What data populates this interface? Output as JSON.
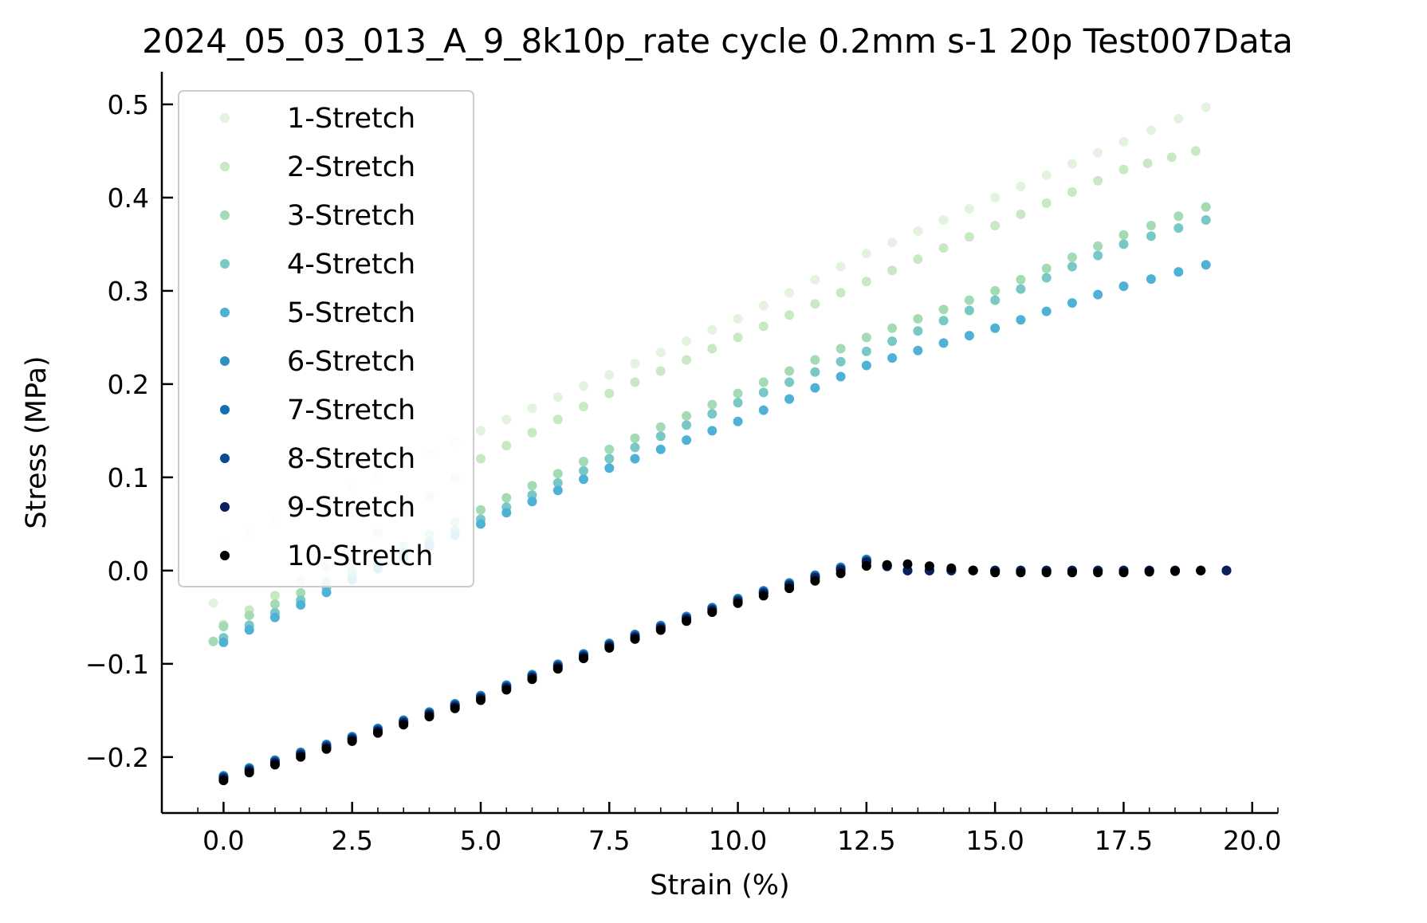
{
  "chart_data": {
    "type": "scatter",
    "title": "2024_05_03_013_A_9_8k10p_rate cycle 0.2mm s-1 20p Test007Data",
    "xlabel": "Strain (%)",
    "ylabel": "Stress (MPa)",
    "xlim": [
      -1.2,
      20.5
    ],
    "ylim": [
      -0.26,
      0.535
    ],
    "xticks": [
      0.0,
      2.5,
      5.0,
      7.5,
      10.0,
      12.5,
      15.0,
      17.5,
      20.0
    ],
    "xtick_labels": [
      "0.0",
      "2.5",
      "5.0",
      "7.5",
      "10.0",
      "12.5",
      "15.0",
      "17.5",
      "20.0"
    ],
    "yticks": [
      -0.2,
      -0.1,
      0.0,
      0.1,
      0.2,
      0.3,
      0.4,
      0.5
    ],
    "ytick_labels": [
      "−0.2",
      "−0.1",
      "0.0",
      "0.1",
      "0.2",
      "0.3",
      "0.4",
      "0.5"
    ],
    "grid": false,
    "legend_position": "top-left",
    "series": [
      {
        "name": "1-Stretch",
        "color": "#e3f3e0",
        "x": [
          -0.2,
          0.0,
          2.5,
          5.0,
          7.5,
          10.0,
          12.5,
          15.0,
          17.5,
          19.1
        ],
        "y": [
          -0.035,
          0.03,
          0.09,
          0.15,
          0.21,
          0.27,
          0.34,
          0.4,
          0.46,
          0.497
        ]
      },
      {
        "name": "2-Stretch",
        "color": "#c8e9c3",
        "x": [
          0.0,
          2.5,
          5.0,
          7.5,
          10.0,
          12.5,
          15.0,
          17.5,
          18.9
        ],
        "y": [
          -0.058,
          0.02,
          0.12,
          0.19,
          0.25,
          0.31,
          0.37,
          0.43,
          0.45
        ]
      },
      {
        "name": "3-Stretch",
        "color": "#a4dbb5",
        "x": [
          -0.2,
          0.0,
          2.5,
          5.0,
          7.5,
          10.0,
          12.5,
          15.0,
          17.5,
          19.1
        ],
        "y": [
          -0.076,
          -0.06,
          0.0,
          0.065,
          0.13,
          0.19,
          0.25,
          0.3,
          0.36,
          0.39
        ]
      },
      {
        "name": "4-Stretch",
        "color": "#78c9c5",
        "x": [
          0.0,
          2.5,
          5.0,
          7.5,
          10.0,
          12.5,
          15.0,
          17.5,
          19.1
        ],
        "y": [
          -0.072,
          -0.005,
          0.055,
          0.12,
          0.18,
          0.235,
          0.29,
          0.35,
          0.376
        ]
      },
      {
        "name": "5-Stretch",
        "color": "#4eb1d5",
        "x": [
          0.0,
          2.5,
          5.0,
          7.5,
          10.0,
          12.5,
          15.0,
          17.5,
          19.1
        ],
        "y": [
          -0.077,
          -0.01,
          0.05,
          0.11,
          0.16,
          0.22,
          0.26,
          0.305,
          0.328
        ]
      },
      {
        "name": "6-Stretch",
        "color": "#2e91c2",
        "x": [
          0.0,
          2.5,
          5.0,
          7.5,
          10.0,
          12.5,
          13.3,
          15.0,
          17.5,
          19.5
        ],
        "y": [
          -0.22,
          -0.178,
          -0.134,
          -0.078,
          -0.03,
          0.012,
          0.0,
          0.0,
          0.0,
          0.0
        ]
      },
      {
        "name": "7-Stretch",
        "color": "#136eb2",
        "x": [
          0.0,
          2.5,
          5.0,
          7.5,
          10.0,
          12.5,
          13.3,
          15.0,
          17.5,
          19.5
        ],
        "y": [
          -0.221,
          -0.179,
          -0.135,
          -0.079,
          -0.031,
          0.011,
          0.0,
          0.0,
          0.0,
          0.0
        ]
      },
      {
        "name": "8-Stretch",
        "color": "#0c4a8f",
        "x": [
          0.0,
          2.5,
          5.0,
          7.5,
          10.0,
          12.5,
          13.3,
          15.0,
          17.5,
          19.5
        ],
        "y": [
          -0.222,
          -0.18,
          -0.136,
          -0.08,
          -0.032,
          0.01,
          0.0,
          0.0,
          0.0,
          0.0
        ]
      },
      {
        "name": "9-Stretch",
        "color": "#0b1f5c",
        "x": [
          0.0,
          2.5,
          5.0,
          7.5,
          10.0,
          12.5,
          13.3,
          15.0,
          17.5,
          19.5
        ],
        "y": [
          -0.223,
          -0.181,
          -0.137,
          -0.081,
          -0.033,
          0.009,
          0.0,
          0.0,
          0.0,
          0.0
        ]
      },
      {
        "name": "10-Stretch",
        "color": "#000000",
        "x": [
          0.0,
          2.5,
          5.0,
          7.5,
          10.0,
          12.5,
          13.3,
          15.0,
          17.5,
          19.0
        ],
        "y": [
          -0.225,
          -0.183,
          -0.139,
          -0.083,
          -0.035,
          0.005,
          0.007,
          -0.002,
          -0.002,
          0.0
        ]
      }
    ]
  }
}
